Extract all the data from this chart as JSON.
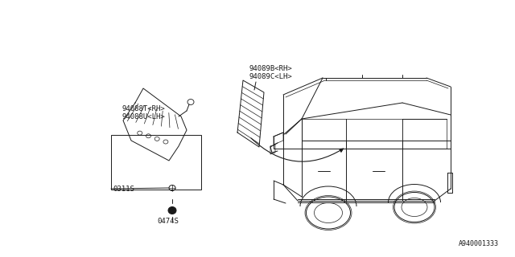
{
  "background_color": "#ffffff",
  "diagram_id": "A940001333",
  "line_color": "#1a1a1a",
  "text_color": "#1a1a1a",
  "font_size": 6.5,
  "label_94088T": "94088T<RH>",
  "label_94088U": "94088U<LH>",
  "label_94089B": "94089B<RH>",
  "label_94089C": "94089C<LH>",
  "label_0311S": "0311S",
  "label_0474S": "0474S"
}
